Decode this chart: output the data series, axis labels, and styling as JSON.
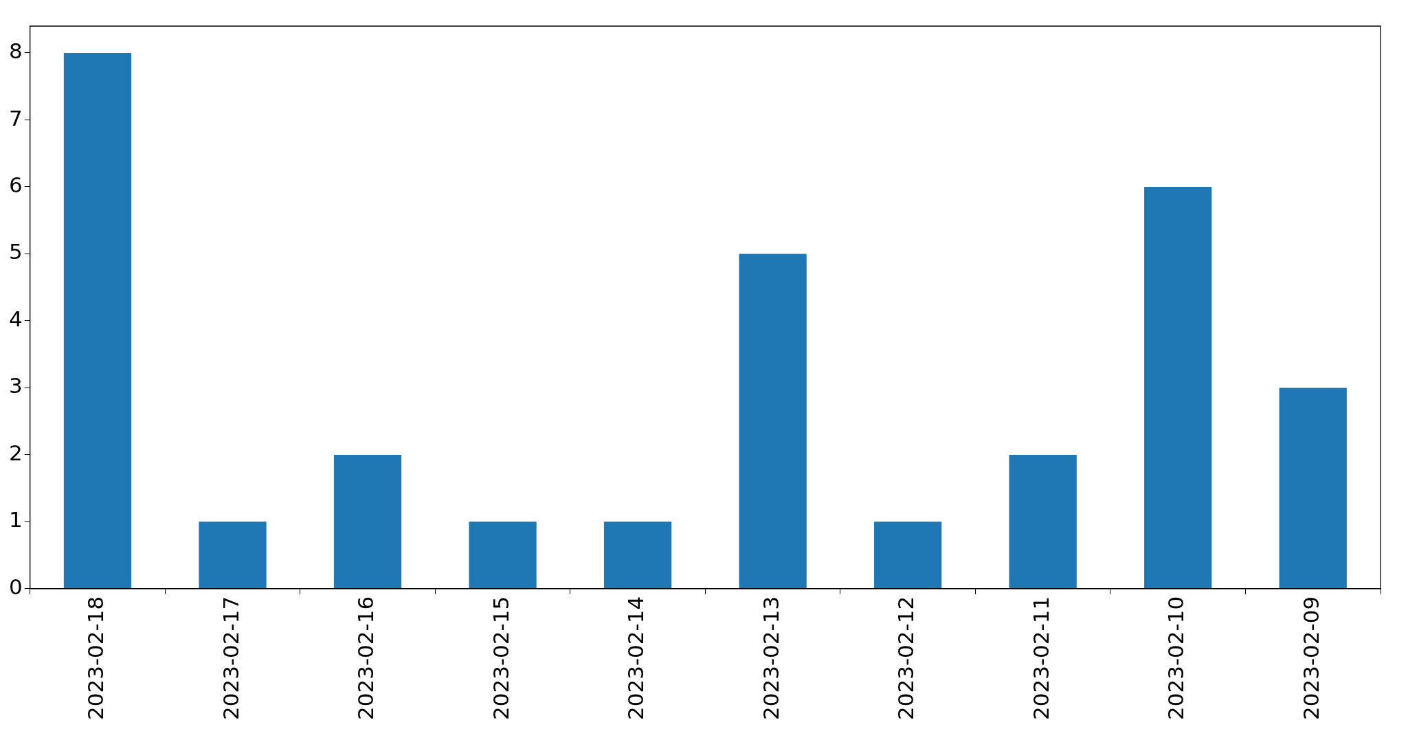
{
  "chart_data": {
    "type": "bar",
    "categories": [
      "2023-02-18",
      "2023-02-17",
      "2023-02-16",
      "2023-02-15",
      "2023-02-14",
      "2023-02-13",
      "2023-02-12",
      "2023-02-11",
      "2023-02-10",
      "2023-02-09"
    ],
    "values": [
      8,
      1,
      2,
      1,
      1,
      5,
      1,
      2,
      6,
      3
    ],
    "color": "#1f77b4",
    "ylim": [
      0,
      8.4
    ],
    "yticks": [
      0,
      1,
      2,
      3,
      4,
      5,
      6,
      7,
      8
    ],
    "grid": false,
    "legend": false
  }
}
